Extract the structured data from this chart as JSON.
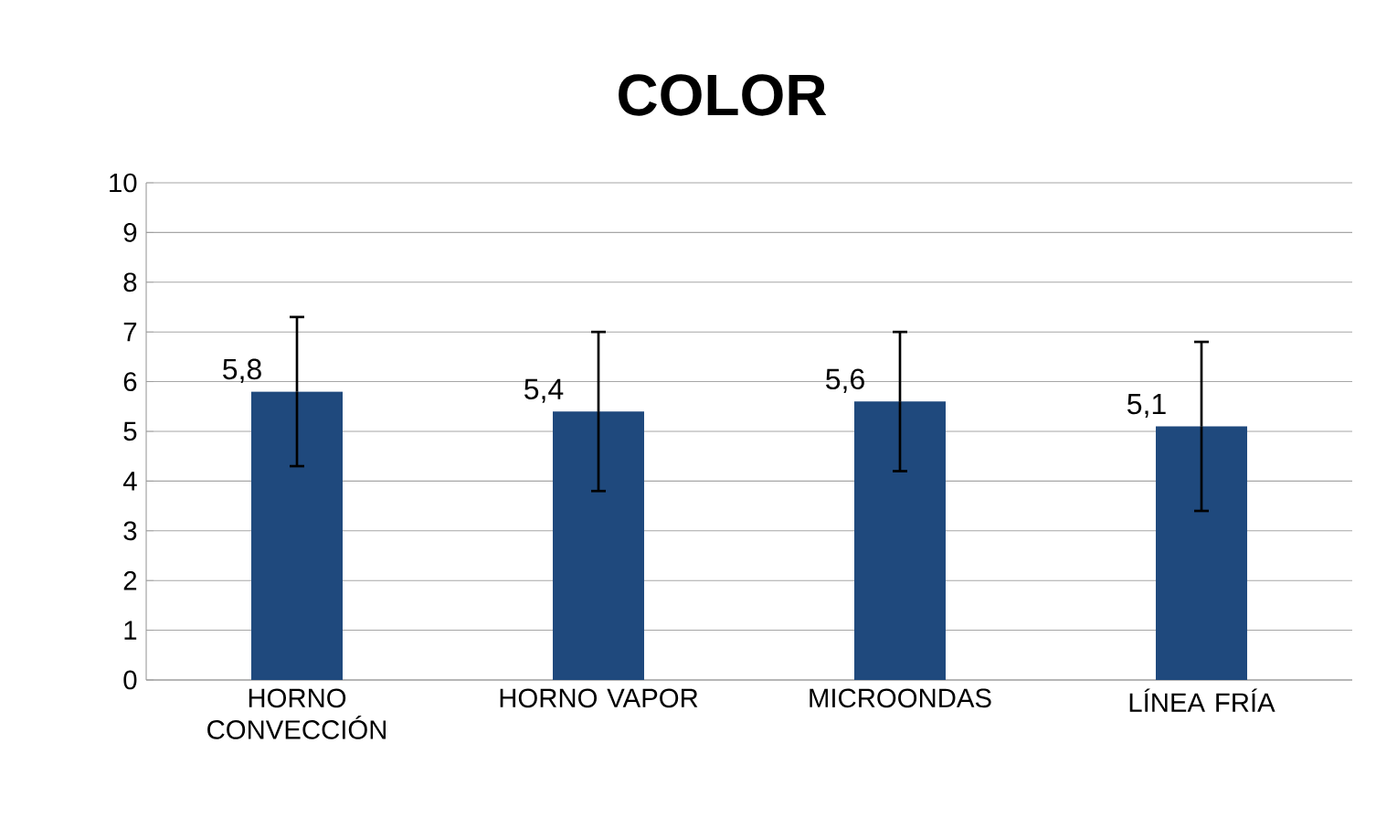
{
  "chart_data": {
    "type": "bar",
    "title": "COLOR",
    "categories": [
      "HORNO CONVECCIÓN",
      "HORNO VAPOR",
      "MICROONDAS",
      "LÍNEA FRÍA"
    ],
    "values": [
      5.8,
      5.4,
      5.6,
      5.1
    ],
    "value_labels": [
      "5,8",
      "5,4",
      "5,6",
      "5,1"
    ],
    "errors": [
      1.5,
      1.6,
      1.4,
      1.7
    ],
    "color": "#1f497d",
    "ylim": [
      0,
      10
    ],
    "yticks": [
      0,
      1,
      2,
      3,
      4,
      5,
      6,
      7,
      8,
      9,
      10
    ],
    "grid": "y"
  }
}
